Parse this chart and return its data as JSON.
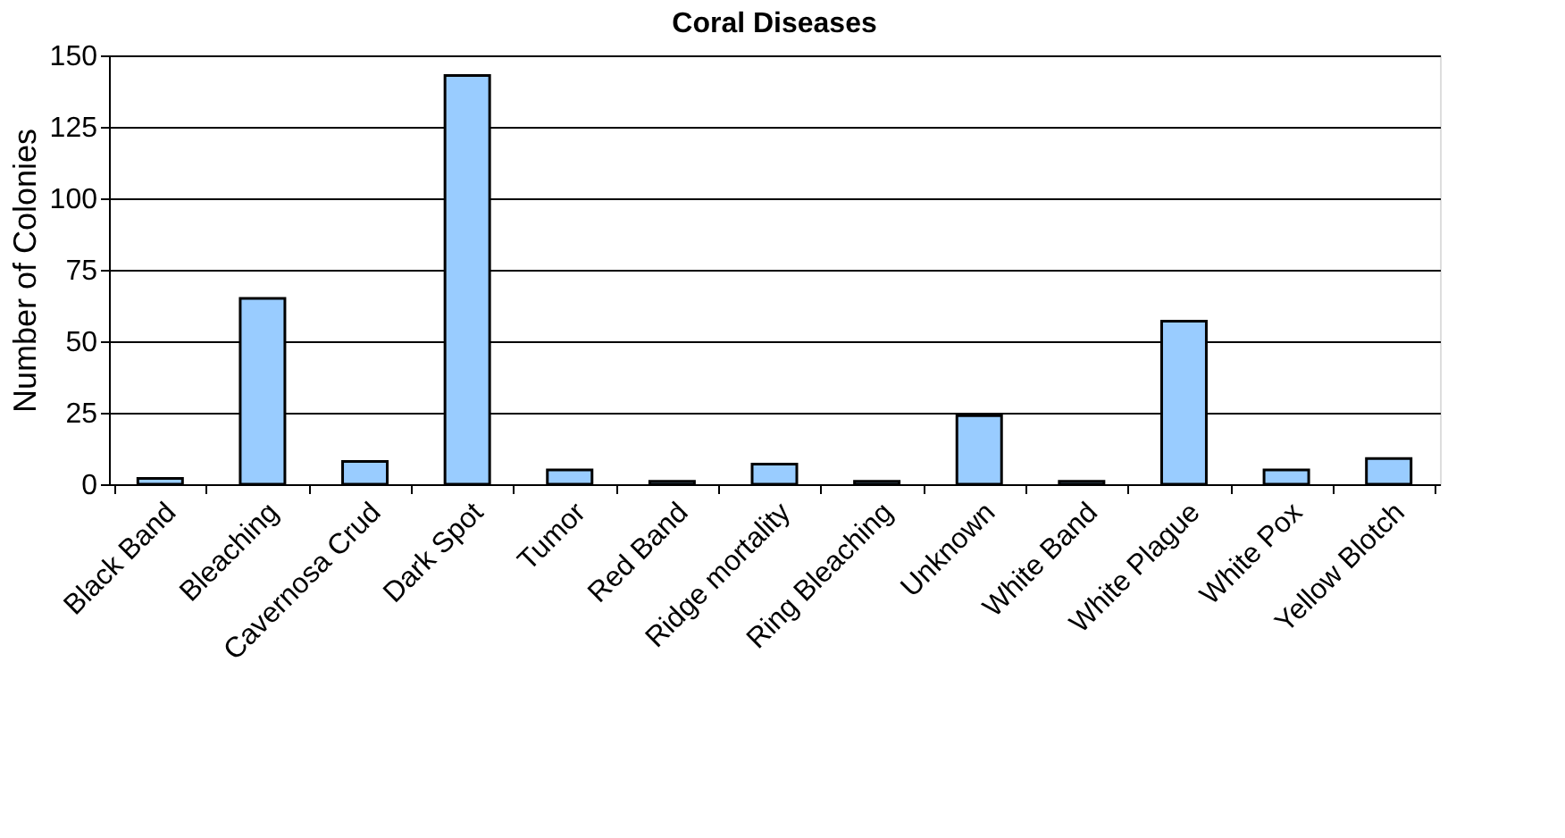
{
  "chart_data": {
    "type": "bar",
    "title": "Coral Diseases",
    "ylabel": "Number of Colonies",
    "categories": [
      "Black Band",
      "Bleaching",
      "Cavernosa Crud",
      "Dark Spot",
      "Tumor",
      "Red Band",
      "Ridge mortality",
      "Ring Bleaching",
      "Unknown",
      "White Band",
      "White Plague",
      "White Pox",
      "Yellow Blotch"
    ],
    "values": [
      2,
      65,
      8,
      143,
      5,
      1,
      7,
      1,
      24,
      1,
      57,
      5,
      9
    ],
    "color": "#99ccff",
    "ylim": [
      0,
      150
    ],
    "yticks": [
      0,
      25,
      50,
      75,
      100,
      125,
      150
    ],
    "grid": "y"
  }
}
